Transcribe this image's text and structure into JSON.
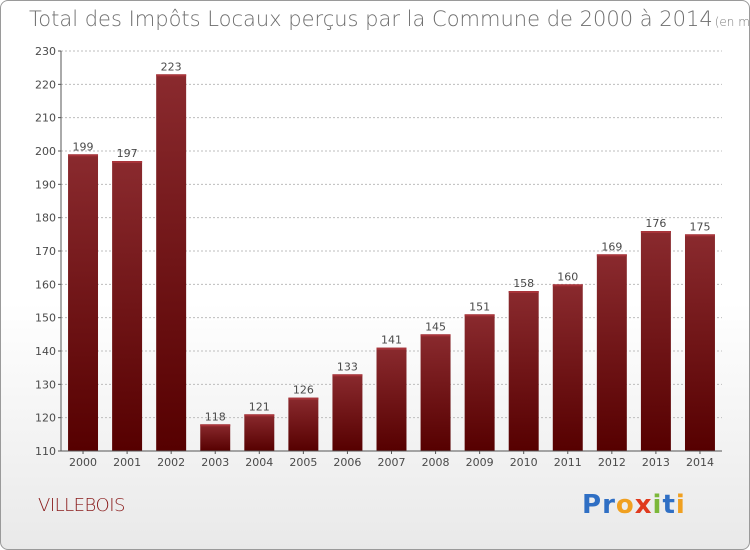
{
  "header": {
    "title": "Total des Impôts Locaux perçus par la Commune de 2000 à 2014",
    "subtitle": "(en milliers d'€)"
  },
  "footer": {
    "commune": "VILLEBOIS",
    "logo_text": "Proxiti",
    "logo_letters": [
      {
        "char": "P",
        "color": "#2f6fc4"
      },
      {
        "char": "r",
        "color": "#2f6fc4"
      },
      {
        "char": "o",
        "color": "#f0a020"
      },
      {
        "char": "x",
        "color": "#e03a1e"
      },
      {
        "char": "i",
        "color": "#7cb83a"
      },
      {
        "char": "t",
        "color": "#2f6fc4"
      },
      {
        "char": "i",
        "color": "#f0a020"
      }
    ]
  },
  "colors": {
    "bar_top": "#8a2a2e",
    "bar_bottom": "#560000",
    "grid": "#bdbdbd",
    "axis": "#555555"
  },
  "chart_data": {
    "type": "bar",
    "title": "Total des Impôts Locaux perçus par la Commune de 2000 à 2014",
    "ylabel": "",
    "xlabel": "",
    "ylim": [
      110,
      230
    ],
    "ytick_step": 10,
    "grid": true,
    "categories": [
      "2000",
      "2001",
      "2002",
      "2003",
      "2004",
      "2005",
      "2006",
      "2007",
      "2008",
      "2009",
      "2010",
      "2011",
      "2012",
      "2013",
      "2014"
    ],
    "values": [
      199,
      197,
      223,
      118,
      121,
      126,
      133,
      141,
      145,
      151,
      158,
      160,
      169,
      176,
      175
    ]
  }
}
